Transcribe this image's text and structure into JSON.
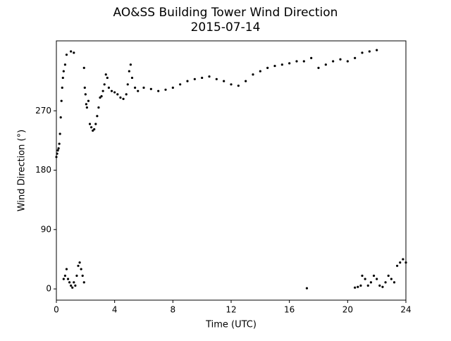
{
  "chart_data": {
    "type": "scatter",
    "title": "AO&SS Building Tower Wind Direction",
    "subtitle": "2015-07-14",
    "x_label": "Time (UTC)",
    "y_label": "Wind Direction (°)",
    "color": "#000000",
    "x": [
      0.0,
      0.05,
      0.1,
      0.15,
      0.2,
      0.25,
      0.3,
      0.35,
      0.4,
      0.45,
      0.5,
      0.6,
      0.7,
      1.0,
      1.2,
      1.9,
      1.95,
      2.0,
      2.05,
      2.1,
      2.2,
      2.3,
      2.4,
      2.5,
      2.6,
      2.7,
      2.8,
      2.9,
      3.0,
      3.1,
      3.2,
      3.3,
      3.4,
      3.5,
      3.6,
      3.8,
      4.0,
      4.2,
      4.4,
      4.6,
      4.8,
      4.9,
      5.0,
      5.1,
      5.2,
      5.4,
      5.6,
      6.0,
      6.5,
      7.0,
      7.5,
      8.0,
      8.5,
      9.0,
      9.5,
      10.0,
      10.5,
      11.0,
      11.5,
      12.0,
      12.5,
      13.0,
      13.5,
      14.0,
      14.5,
      15.0,
      15.5,
      16.0,
      16.5,
      17.0,
      17.5,
      18.0,
      18.5,
      19.0,
      19.5,
      20.0,
      20.5,
      21.0,
      21.5,
      22.0,
      0.5,
      0.6,
      0.7,
      0.8,
      0.9,
      1.0,
      1.1,
      1.2,
      1.3,
      1.4,
      1.5,
      1.6,
      1.7,
      1.8,
      1.9,
      17.2,
      20.5,
      20.7,
      20.9,
      21.0,
      21.2,
      21.4,
      21.6,
      21.8,
      22.0,
      22.2,
      22.4,
      22.6,
      22.8,
      23.0,
      23.2,
      23.4,
      23.6,
      23.8,
      24.0
    ],
    "values": [
      200,
      205,
      210,
      213,
      220,
      235,
      260,
      285,
      305,
      320,
      330,
      340,
      355,
      360,
      358,
      335,
      305,
      295,
      280,
      275,
      285,
      250,
      245,
      240,
      242,
      250,
      262,
      275,
      290,
      292,
      300,
      310,
      325,
      320,
      305,
      300,
      298,
      295,
      290,
      288,
      295,
      310,
      330,
      340,
      320,
      305,
      300,
      305,
      303,
      300,
      302,
      305,
      310,
      315,
      318,
      320,
      322,
      318,
      315,
      310,
      308,
      315,
      325,
      330,
      335,
      338,
      340,
      342,
      345,
      345,
      350,
      335,
      340,
      345,
      348,
      345,
      350,
      358,
      360,
      362,
      15,
      20,
      30,
      15,
      10,
      5,
      2,
      10,
      5,
      20,
      35,
      40,
      30,
      20,
      10,
      1,
      2,
      3,
      5,
      20,
      15,
      5,
      10,
      20,
      15,
      5,
      3,
      10,
      20,
      15,
      10,
      35,
      40,
      45,
      40
    ],
    "xlim": [
      0,
      24
    ],
    "xticks": [
      0,
      4,
      8,
      12,
      16,
      20,
      24
    ],
    "ylim": [
      -17,
      376
    ],
    "yticks": [
      0,
      90,
      180,
      270
    ]
  }
}
